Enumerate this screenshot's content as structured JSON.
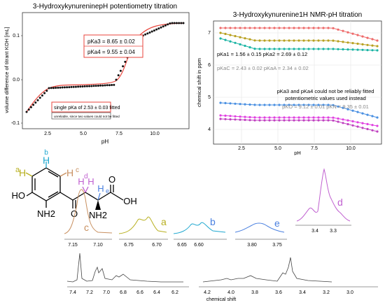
{
  "titration": {
    "title": "3-HydroxykynureninepH potentiometry titration",
    "ylabel": "volume difference of titrant KOH [mL]",
    "xlabel": "pH",
    "xticks": [
      "2.5",
      "5.0",
      "7.5",
      "10.0"
    ],
    "yticks": [
      "0.1",
      "0.0",
      "-0.1"
    ],
    "box1_line1": "pKa3 = 8.65 ± 0.02",
    "box1_line2": "pKa4 = 9.55 ± 0.04",
    "box2_text": "single pKa of 2.53 ± 0.03 fitted",
    "box2_note": "unreliable, since two values could not be fitted",
    "colors": {
      "points": "#111111",
      "fit": "#e8453c"
    }
  },
  "nmr_titration": {
    "title": "3-Hydroxykynurenine1H NMR-pH titration",
    "ylabel": "chemical shift in ppm",
    "xlabel": "pH",
    "xticks": [
      "2.5",
      "5.0",
      "7.5",
      "10.0"
    ],
    "yticks": [
      "7",
      "6",
      "5",
      "4"
    ],
    "pka_line1": "pKa1 = 1.56 ± 0.15  pKa2 = 2.69 ± 0.12",
    "pka_line2": "pKaC = 2.43 ± 0.02  pKaA = 2.34 ± 0.02",
    "note_line1": "pKa3 and pKa4 could not be reliably fitted",
    "note_line2": "potentiometric values used instead",
    "pka_line3": "pKO = 9.12 ± 0.01  pKN = 9.35 ± 0.01",
    "colors": {
      "s1": "#ee6a6a",
      "s2": "#b8a020",
      "s3": "#1ab4a4",
      "s4": "#4a90e2",
      "s5": "#e040e0",
      "s6": "#c040c0"
    }
  },
  "structure": {
    "labels": {
      "a": "a",
      "b": "b",
      "c": "c",
      "d": "d",
      "e": "e"
    },
    "atoms": {
      "H": "H",
      "HO": "HO",
      "NH2a": "NH2",
      "NH2b": "NH2",
      "O1": "O",
      "O2": "O",
      "OH": "OH"
    },
    "colors": {
      "a": "#b8b020",
      "b": "#20a8d0",
      "c": "#c89060",
      "d": "#c060d0",
      "e": "#4a80e0"
    }
  },
  "spectra": {
    "c_ticks": [
      "7.15",
      "7.10"
    ],
    "a_ticks": [
      "6.75",
      "6.70"
    ],
    "b_ticks": [
      "6.65",
      "6.60"
    ],
    "e_ticks": [
      "3.80",
      "3.75"
    ],
    "d_ticks": [
      "3.4",
      "3.3"
    ],
    "full_ticks": [
      "7.4",
      "7.2",
      "7.0",
      "6.8",
      "6.6",
      "6.4",
      "6.2",
      "4.2",
      "4.0",
      "3.8",
      "3.6",
      "3.4",
      "3.2",
      "3.0"
    ],
    "full_xlabel": "chemical shift"
  }
}
